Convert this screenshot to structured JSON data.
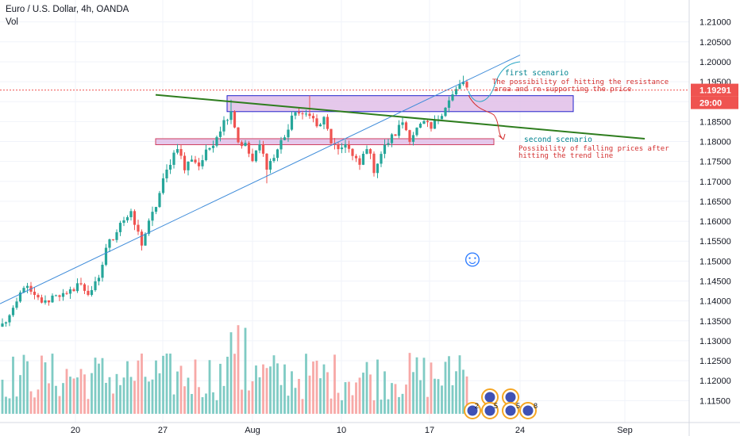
{
  "header": {
    "symbol_title": "Euro / U.S. Dollar, 4h, OANDA",
    "volume_label": "Vol"
  },
  "colors": {
    "up": "#26a69a",
    "down": "#ef5350",
    "vol_up": "#7fcbc4",
    "vol_down": "#f7a9a7",
    "trend_line": "#3d8bd9",
    "green_line": "#2e7d1e",
    "zone_fill": "#e1bee7",
    "zone_border_blue": "#2222cc",
    "zone_border_red": "#d04060",
    "scenario1": "#00838f",
    "scenario2": "#d32f2f",
    "price_tag": "#ef5350",
    "smiley": "#2979ff"
  },
  "chart_data": {
    "type": "candlestick",
    "title": "Euro / U.S. Dollar, 4h, OANDA",
    "ylim": [
      1.1095,
      1.2155
    ],
    "y_ticks": [
      "1.21000",
      "1.20500",
      "1.20000",
      "1.19500",
      "1.19000",
      "1.18500",
      "1.18000",
      "1.17500",
      "1.17000",
      "1.16500",
      "1.16000",
      "1.15500",
      "1.15000",
      "1.14500",
      "1.14000",
      "1.13500",
      "1.13000",
      "1.12500",
      "1.12000",
      "1.11500"
    ],
    "x_ticks": [
      "20",
      "27",
      "Aug",
      "10",
      "17",
      "24",
      "Sep"
    ],
    "last_price": "1.19291",
    "countdown": "29:00",
    "close_path": [
      [
        0,
        1.134
      ],
      [
        3,
        1.1372
      ],
      [
        6,
        1.144
      ],
      [
        9,
        1.1408
      ],
      [
        12,
        1.1395
      ],
      [
        15,
        1.142
      ],
      [
        18,
        1.141
      ],
      [
        21,
        1.1445
      ],
      [
        24,
        1.142
      ],
      [
        27,
        1.145
      ],
      [
        29,
        1.1535
      ],
      [
        31,
        1.156
      ],
      [
        33,
        1.16
      ],
      [
        36,
        1.1615
      ],
      [
        39,
        1.1545
      ],
      [
        40,
        1.157
      ],
      [
        43,
        1.164
      ],
      [
        45,
        1.17
      ],
      [
        47,
        1.175
      ],
      [
        49,
        1.179
      ],
      [
        51,
        1.173
      ],
      [
        53,
        1.176
      ],
      [
        55,
        1.174
      ],
      [
        57,
        1.177
      ],
      [
        59,
        1.18
      ],
      [
        62,
        1.185
      ],
      [
        64,
        1.188
      ],
      [
        66,
        1.18
      ],
      [
        68,
        1.179
      ],
      [
        70,
        1.175
      ],
      [
        72,
        1.179
      ],
      [
        74,
        1.174
      ],
      [
        76,
        1.176
      ],
      [
        78,
        1.18
      ],
      [
        80,
        1.183
      ],
      [
        82,
        1.188
      ],
      [
        84,
        1.186
      ],
      [
        86,
        1.1875
      ],
      [
        88,
        1.1835
      ],
      [
        90,
        1.1855
      ],
      [
        92,
        1.18
      ],
      [
        94,
        1.177
      ],
      [
        96,
        1.18
      ],
      [
        98,
        1.176
      ],
      [
        100,
        1.174
      ],
      [
        102,
        1.179
      ],
      [
        104,
        1.173
      ],
      [
        106,
        1.177
      ],
      [
        108,
        1.18
      ],
      [
        110,
        1.182
      ],
      [
        112,
        1.185
      ],
      [
        114,
        1.181
      ],
      [
        116,
        1.183
      ],
      [
        118,
        1.1845
      ],
      [
        120,
        1.183
      ],
      [
        122,
        1.186
      ],
      [
        124,
        1.189
      ],
      [
        126,
        1.1915
      ],
      [
        128,
        1.194
      ],
      [
        129,
        1.195
      ],
      [
        130,
        1.1932
      ]
    ],
    "extremes": {
      "start_low": 1.1335,
      "jul31_high": 1.1905,
      "aug4_low": 1.1695,
      "aug6_high": 1.1915,
      "aug12_low": 1.1712,
      "aug18_high": 1.1965
    },
    "volume_max_ratio": 0.86
  },
  "annotations": {
    "first_scenario_label": "first scenario",
    "first_scenario_text": "The possibility of hitting the resistance area and re-supporting the price",
    "second_scenario_label": "second scenario",
    "second_scenario_text_line1": "Possibility of falling prices after",
    "second_scenario_text_line2": "hitting the trend line",
    "smiley_glyph": "☺"
  },
  "events": {
    "row1": [
      "2",
      "5"
    ],
    "row2": [
      "5",
      "8"
    ]
  }
}
